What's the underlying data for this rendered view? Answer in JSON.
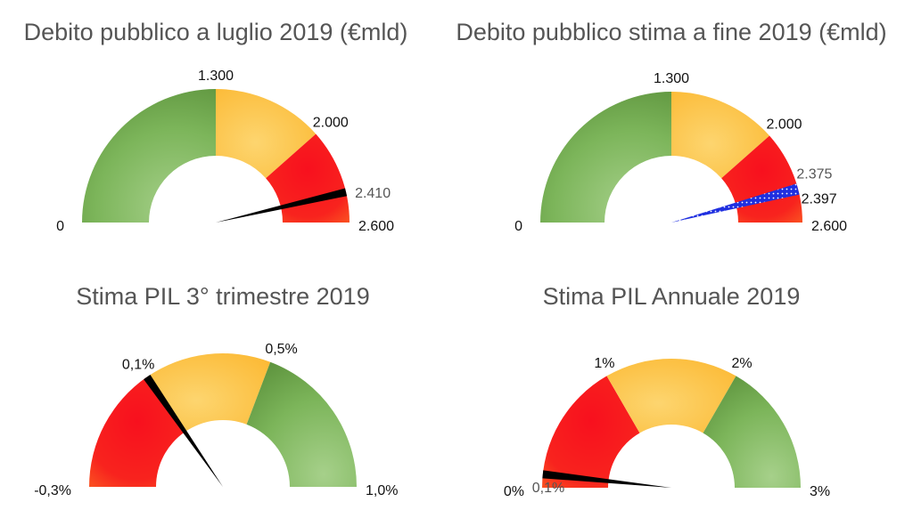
{
  "chart_data": [
    {
      "type": "gauge",
      "title": "Debito pubblico a luglio 2019 (€mld)",
      "range": [
        0,
        2600
      ],
      "bands": [
        {
          "from": 0,
          "to": 1300,
          "color": "#6aa84f"
        },
        {
          "from": 1300,
          "to": 2000,
          "color": "#fbbf3a"
        },
        {
          "from": 2000,
          "to": 2600,
          "color": "#f5121e"
        }
      ],
      "tick_labels": [
        {
          "value": 0,
          "text": "0"
        },
        {
          "value": 1300,
          "text": "1.300"
        },
        {
          "value": 2000,
          "text": "2.000"
        },
        {
          "value": 2600,
          "text": "2.600"
        }
      ],
      "needle": {
        "value": 2410,
        "text": "2.410",
        "color": "#000000"
      }
    },
    {
      "type": "gauge",
      "title": "Debito pubblico stima a fine 2019 (€mld)",
      "range": [
        0,
        2600
      ],
      "bands": [
        {
          "from": 0,
          "to": 1300,
          "color": "#6aa84f"
        },
        {
          "from": 1300,
          "to": 2000,
          "color": "#fbbf3a"
        },
        {
          "from": 2000,
          "to": 2600,
          "color": "#f5121e"
        }
      ],
      "tick_labels": [
        {
          "value": 0,
          "text": "0"
        },
        {
          "value": 1300,
          "text": "1.300"
        },
        {
          "value": 2000,
          "text": "2.000"
        },
        {
          "value": 2600,
          "text": "2.600"
        }
      ],
      "needle_range": {
        "from": 2375,
        "to": 2397,
        "from_text": "2.375",
        "to_text": "2.397",
        "color": "#1f2fe0",
        "pattern": "dotted"
      }
    },
    {
      "type": "gauge",
      "title": "Stima PIL 3° trimestre 2019",
      "range": [
        -0.3,
        1.0
      ],
      "bands": [
        {
          "from": -0.3,
          "to": 0.1,
          "color": "#f5121e"
        },
        {
          "from": 0.1,
          "to": 0.5,
          "color": "#fbbf3a"
        },
        {
          "from": 0.5,
          "to": 1.0,
          "color": "#6aa84f"
        }
      ],
      "tick_labels": [
        {
          "value": -0.3,
          "text": "-0,3%"
        },
        {
          "value": 0.1,
          "text": "0,1%"
        },
        {
          "value": 0.5,
          "text": "0,5%"
        },
        {
          "value": 1.0,
          "text": "1,0%"
        }
      ],
      "needle": {
        "value": 0.1,
        "text": "",
        "color": "#000000"
      }
    },
    {
      "type": "gauge",
      "title": "Stima PIL Annuale 2019",
      "range": [
        0,
        3
      ],
      "bands": [
        {
          "from": 0,
          "to": 1,
          "color": "#f5121e"
        },
        {
          "from": 1,
          "to": 2,
          "color": "#fbbf3a"
        },
        {
          "from": 2,
          "to": 3,
          "color": "#6aa84f"
        }
      ],
      "tick_labels": [
        {
          "value": 0,
          "text": "0%"
        },
        {
          "value": 1,
          "text": "1%"
        },
        {
          "value": 2,
          "text": "2%"
        },
        {
          "value": 3,
          "text": "3%"
        }
      ],
      "needle": {
        "value": 0.1,
        "text": "0,1%",
        "color": "#000000"
      }
    }
  ]
}
